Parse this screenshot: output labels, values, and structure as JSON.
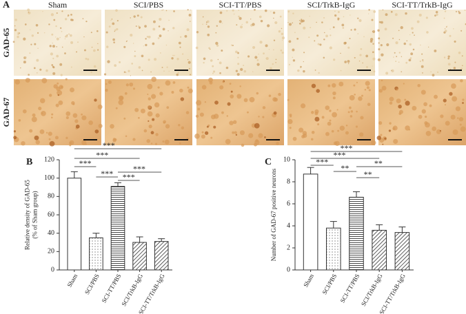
{
  "panel_a": {
    "label": "A",
    "columns": [
      "Sham",
      "SCI/PBS",
      "SCI-TT/PBS",
      "SCI/TrkB-IgG",
      "SCI-TT/TrkB-IgG"
    ],
    "rows": [
      "GAD-65",
      "GAD-67"
    ]
  },
  "chart_data": [
    {
      "type": "bar",
      "panel": "B",
      "categories": [
        "Sham",
        "SCI/PBS",
        "SCI-TT/PBS",
        "SCI/TrkB-IgG",
        "SCI-TT/TrkB-IgG"
      ],
      "values": [
        100,
        35,
        91,
        30,
        31
      ],
      "errors": [
        7,
        5,
        4,
        6,
        3
      ],
      "patterns": [
        "none",
        "dots",
        "hlines",
        "diag",
        "diag"
      ],
      "ylim": [
        0,
        120
      ],
      "yticks": [
        0,
        20,
        40,
        60,
        80,
        100,
        120
      ],
      "ylabel": [
        "Relative density of GAD-65",
        "(% of Sham group)"
      ],
      "significance": [
        {
          "from": 0,
          "to": 4,
          "label": "***"
        },
        {
          "from": 0,
          "to": 3,
          "label": "***"
        },
        {
          "from": 0,
          "to": 1,
          "label": "***"
        },
        {
          "from": 2,
          "to": 4,
          "label": "***"
        },
        {
          "from": 1,
          "to": 2,
          "label": "***"
        },
        {
          "from": 2,
          "to": 3,
          "label": "***"
        }
      ]
    },
    {
      "type": "bar",
      "panel": "C",
      "categories": [
        "Sham",
        "SCI/PBS",
        "SCI-TT/PBS",
        "SCI/TrkB-IgG",
        "SCI-TT/TrkB-IgG"
      ],
      "values": [
        8.7,
        3.8,
        6.6,
        3.6,
        3.4
      ],
      "errors": [
        0.6,
        0.6,
        0.5,
        0.5,
        0.5
      ],
      "patterns": [
        "none",
        "dots",
        "hlines",
        "diag",
        "diag"
      ],
      "ylim": [
        0,
        10
      ],
      "yticks": [
        0,
        2,
        4,
        6,
        8,
        10
      ],
      "ylabel": [
        "Number of GAD-67 positive neurons"
      ],
      "significance": [
        {
          "from": 0,
          "to": 4,
          "label": "***"
        },
        {
          "from": 0,
          "to": 3,
          "label": "***"
        },
        {
          "from": 0,
          "to": 1,
          "label": "***"
        },
        {
          "from": 2,
          "to": 4,
          "label": "**"
        },
        {
          "from": 1,
          "to": 2,
          "label": "**"
        },
        {
          "from": 2,
          "to": 3,
          "label": "**"
        }
      ]
    }
  ]
}
